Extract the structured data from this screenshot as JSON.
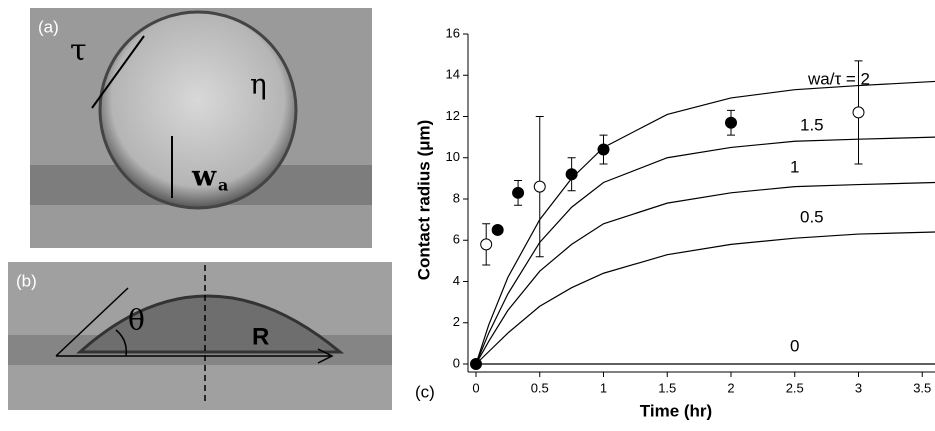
{
  "panels": {
    "a": {
      "label": "(a)",
      "tau": "τ",
      "eta": "η",
      "wa": "w",
      "wa_sub": "a"
    },
    "b": {
      "label": "(b)",
      "theta": "θ",
      "radius": "R"
    }
  },
  "chart_data": {
    "type": "line",
    "panel_label": "(c)",
    "xlabel": "Time (hr)",
    "ylabel": "Contact radius (μm)",
    "xlim": [
      0,
      3.6
    ],
    "ylim": [
      0,
      16
    ],
    "xticks": [
      0,
      0.5,
      1,
      1.5,
      2,
      2.5,
      3,
      3.5
    ],
    "yticks": [
      0,
      2,
      4,
      6,
      8,
      10,
      12,
      14,
      16
    ],
    "color": "#000000",
    "x": [
      0,
      0.1,
      0.25,
      0.5,
      0.75,
      1,
      1.5,
      2,
      2.5,
      3,
      3.6
    ],
    "series": [
      {
        "name": "wa/τ = 2",
        "values": [
          0,
          1.9,
          4.2,
          7.0,
          9.0,
          10.5,
          12.1,
          12.9,
          13.3,
          13.5,
          13.7
        ]
      },
      {
        "name": "1.5",
        "values": [
          0,
          1.5,
          3.4,
          5.9,
          7.6,
          8.8,
          10.0,
          10.5,
          10.8,
          10.9,
          11.0
        ]
      },
      {
        "name": "1",
        "values": [
          0,
          1.1,
          2.6,
          4.5,
          5.8,
          6.8,
          7.8,
          8.3,
          8.6,
          8.7,
          8.8
        ]
      },
      {
        "name": "0.5",
        "values": [
          0,
          0.6,
          1.5,
          2.8,
          3.7,
          4.4,
          5.3,
          5.8,
          6.1,
          6.3,
          6.4
        ]
      },
      {
        "name": "0",
        "values": [
          0,
          0,
          0,
          0,
          0,
          0,
          0,
          0,
          0,
          0,
          0
        ]
      }
    ],
    "points": [
      {
        "style": "filled",
        "x": [
          0,
          0.17,
          0.33,
          0.75,
          1,
          2
        ],
        "values": [
          0,
          6.5,
          8.3,
          9.2,
          10.4,
          11.7
        ],
        "errors": [
          0,
          0,
          0.6,
          0.8,
          0.7,
          0.6
        ]
      },
      {
        "style": "open",
        "x": [
          0.08,
          0.5,
          3
        ],
        "values": [
          5.8,
          8.6,
          12.2
        ],
        "errors": [
          1.0,
          3.4,
          2.5
        ]
      }
    ]
  }
}
